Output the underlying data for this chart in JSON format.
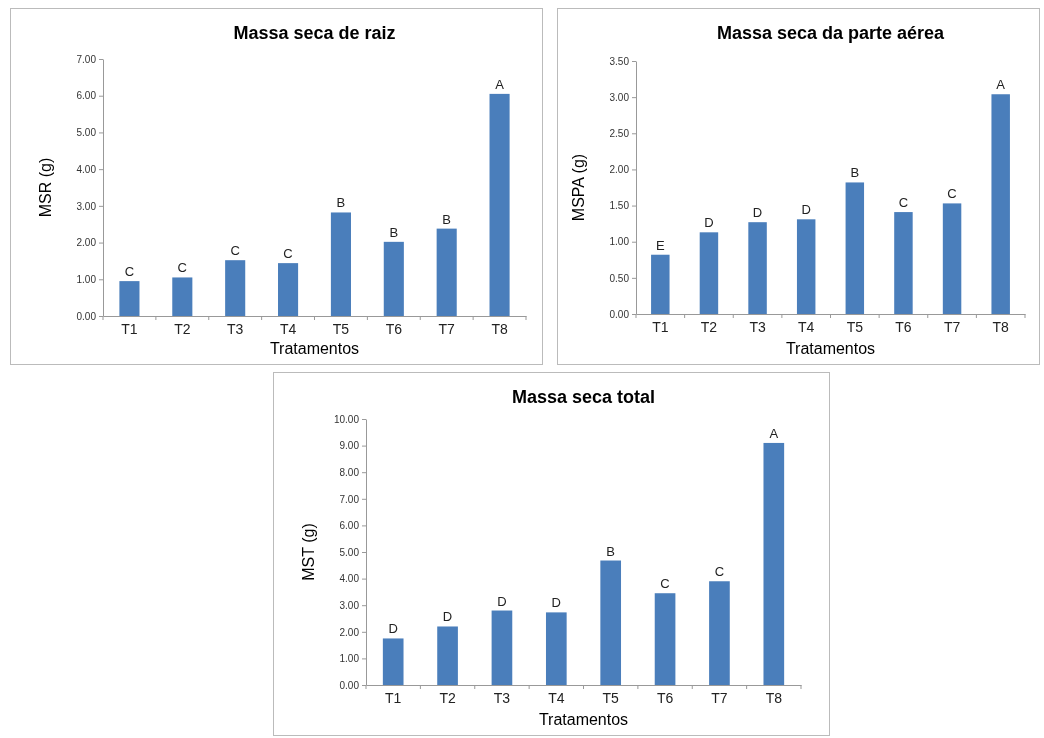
{
  "chart_data": [
    {
      "type": "bar",
      "title": "Massa seca de raiz",
      "xlabel": "Tratamentos",
      "ylabel": "MSR (g)",
      "categories": [
        "T1",
        "T2",
        "T3",
        "T4",
        "T5",
        "T6",
        "T7",
        "T8"
      ],
      "color": "#4a7ebb",
      "values": [
        0.95,
        1.05,
        1.52,
        1.44,
        2.82,
        2.02,
        2.38,
        6.05
      ],
      "value_labels": [
        "C",
        "C",
        "C",
        "C",
        "B",
        "B",
        "B",
        "A"
      ],
      "ylim": [
        0,
        7
      ],
      "yticks": [
        {
          "value": 0,
          "label": "0.00"
        },
        {
          "value": 1,
          "label": "1.00"
        },
        {
          "value": 2,
          "label": "2.00"
        },
        {
          "value": 3,
          "label": "3.00"
        },
        {
          "value": 4,
          "label": "4.00"
        },
        {
          "value": 5,
          "label": "5.00"
        },
        {
          "value": 6,
          "label": "6.00"
        },
        {
          "value": 7,
          "label": "7.00"
        }
      ]
    },
    {
      "type": "bar",
      "title": "Massa seca da parte aérea",
      "xlabel": "Tratamentos",
      "ylabel": "MSPA (g)",
      "categories": [
        "T1",
        "T2",
        "T3",
        "T4",
        "T5",
        "T6",
        "T7",
        "T8"
      ],
      "color": "#4a7ebb",
      "values": [
        0.82,
        1.13,
        1.27,
        1.31,
        1.82,
        1.41,
        1.53,
        3.04
      ],
      "value_labels": [
        "E",
        "D",
        "D",
        "D",
        "B",
        "C",
        "C",
        "A"
      ],
      "ylim": [
        0,
        3.5
      ],
      "yticks": [
        {
          "value": 0,
          "label": "0.00"
        },
        {
          "value": 0.5,
          "label": "0.50"
        },
        {
          "value": 1,
          "label": "1.00"
        },
        {
          "value": 1.5,
          "label": "1.50"
        },
        {
          "value": 2,
          "label": "2.00"
        },
        {
          "value": 2.5,
          "label": "2.50"
        },
        {
          "value": 3,
          "label": "3.00"
        },
        {
          "value": 3.5,
          "label": "3.50"
        }
      ]
    },
    {
      "type": "bar",
      "title": "Massa seca total",
      "xlabel": "Tratamentos",
      "ylabel": "MST (g)",
      "categories": [
        "T1",
        "T2",
        "T3",
        "T4",
        "T5",
        "T6",
        "T7",
        "T8"
      ],
      "color": "#4a7ebb",
      "values": [
        1.75,
        2.2,
        2.8,
        2.73,
        4.68,
        3.45,
        3.9,
        9.1
      ],
      "value_labels": [
        "D",
        "D",
        "D",
        "D",
        "B",
        "C",
        "C",
        "A"
      ],
      "ylim": [
        0,
        10
      ],
      "yticks": [
        {
          "value": 0,
          "label": "0.00"
        },
        {
          "value": 1,
          "label": "1.00"
        },
        {
          "value": 2,
          "label": "2.00"
        },
        {
          "value": 3,
          "label": "3.00"
        },
        {
          "value": 4,
          "label": "4.00"
        },
        {
          "value": 5,
          "label": "5.00"
        },
        {
          "value": 6,
          "label": "6.00"
        },
        {
          "value": 7,
          "label": "7.00"
        },
        {
          "value": 8,
          "label": "8.00"
        },
        {
          "value": 9,
          "label": "9.00"
        },
        {
          "value": 10,
          "label": "10.00"
        }
      ]
    }
  ]
}
